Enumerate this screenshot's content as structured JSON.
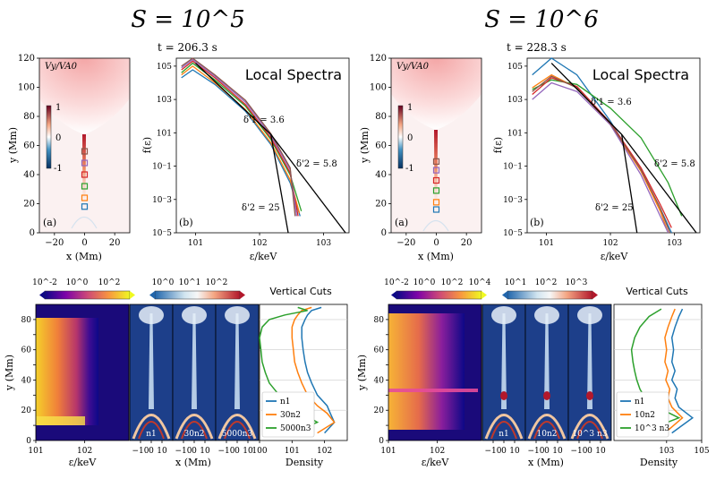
{
  "figure": {
    "left_group_title": "S = 10^5",
    "right_group_title": "S = 10^6"
  },
  "chart_data": [
    {
      "id": "A",
      "type": "heatmap",
      "panel_label": "(a)",
      "colorbar_label": "Vy/VA0",
      "xlabel": "x (Mm)",
      "ylabel": "y (Mm)",
      "xlim": [
        -30,
        30
      ],
      "ylim": [
        0,
        120
      ],
      "xticks": [
        -20,
        0,
        20
      ],
      "yticks": [
        0,
        20,
        40,
        60,
        80,
        100,
        120
      ],
      "colorbar_ticks": [
        -1,
        0,
        1
      ],
      "markers": [
        {
          "y": 18,
          "color": "#1f77b4"
        },
        {
          "y": 24,
          "color": "#ff7f0e"
        },
        {
          "y": 32,
          "color": "#2ca02c"
        },
        {
          "y": 40,
          "color": "#d62728"
        },
        {
          "y": 48,
          "color": "#9467bd"
        },
        {
          "y": 56,
          "color": "#8c564b"
        }
      ]
    },
    {
      "id": "B",
      "type": "line",
      "panel_label": "(b)",
      "time_label": "t = 206.3 s",
      "title": "Local Spectra",
      "xlabel": "ε/keV",
      "ylabel": "f(ε)",
      "xscale": "log",
      "yscale": "log",
      "xlim": [
        5,
        2500
      ],
      "ylim": [
        1e-05,
        300000.0
      ],
      "xticks": [
        10,
        100,
        1000
      ],
      "xticklabels": [
        "10^1",
        "10^2",
        "10^3"
      ],
      "yticks": [
        1e-05,
        0.001,
        0.1,
        10,
        1000,
        100000
      ],
      "yticklabels": [
        "10^-5",
        "10^-3",
        "10^-1",
        "10^1",
        "10^3",
        "10^5"
      ],
      "annotations": [
        "δ'1 = 3.6",
        "δ'2 = 5.8",
        "δ'2 = 25"
      ],
      "powerlaws": [
        {
          "x": [
            10,
            150
          ],
          "y": [
            150000.0,
            8
          ]
        },
        {
          "x": [
            150,
            2200
          ],
          "y": [
            8,
            1e-05
          ]
        },
        {
          "x": [
            150,
            280
          ],
          "y": [
            8,
            1e-05
          ]
        }
      ],
      "series": [
        {
          "color": "#1f77b4",
          "x": [
            6,
            9,
            20,
            60,
            150,
            300,
            430
          ],
          "y": [
            20000.0,
            60000.0,
            8000.0,
            200,
            2,
            0.01,
            0.0001
          ]
        },
        {
          "color": "#ff7f0e",
          "x": [
            6,
            9,
            20,
            60,
            150,
            300,
            420
          ],
          "y": [
            30000.0,
            100000.0,
            10000.0,
            250,
            2.5,
            0.015,
            0.00015
          ]
        },
        {
          "color": "#2ca02c",
          "x": [
            6,
            9,
            20,
            60,
            150,
            300,
            450
          ],
          "y": [
            40000.0,
            150000.0,
            15000.0,
            400,
            4,
            0.03,
            0.0002
          ]
        },
        {
          "color": "#d62728",
          "x": [
            6,
            9,
            20,
            60,
            150,
            300,
            400
          ],
          "y": [
            60000.0,
            200000.0,
            20000.0,
            500,
            5,
            0.04,
            0.0001
          ]
        },
        {
          "color": "#9467bd",
          "x": [
            6,
            9,
            20,
            60,
            150,
            300,
            380
          ],
          "y": [
            80000.0,
            250000.0,
            25000.0,
            700,
            7,
            0.06,
            0.0001
          ]
        },
        {
          "color": "#8c564b",
          "x": [
            6,
            9,
            20,
            60,
            150,
            300,
            360
          ],
          "y": [
            100000.0,
            300000.0,
            30000.0,
            900,
            9,
            0.08,
            0.0001
          ]
        }
      ]
    },
    {
      "id": "C",
      "type": "heatmap",
      "panel_label": "(a)",
      "colorbar_label": "Vy/VA0",
      "xlabel": "x (Mm)",
      "ylabel": "y (Mm)",
      "xlim": [
        -30,
        30
      ],
      "ylim": [
        0,
        120
      ],
      "xticks": [
        -20,
        0,
        20
      ],
      "yticks": [
        0,
        20,
        40,
        60,
        80,
        100,
        120
      ],
      "colorbar_ticks": [
        -1,
        0,
        1
      ],
      "markers": [
        {
          "y": 16,
          "color": "#1f77b4"
        },
        {
          "y": 21,
          "color": "#ff7f0e"
        },
        {
          "y": 29,
          "color": "#2ca02c"
        },
        {
          "y": 36,
          "color": "#d62728"
        },
        {
          "y": 43,
          "color": "#9467bd"
        },
        {
          "y": 49,
          "color": "#8c564b"
        }
      ]
    },
    {
      "id": "D",
      "type": "line",
      "panel_label": "(b)",
      "time_label": "t = 228.3 s",
      "title": "Local Spectra",
      "xlabel": "ε/keV",
      "ylabel": "f(ε)",
      "xscale": "log",
      "yscale": "log",
      "xlim": [
        5,
        2500
      ],
      "ylim": [
        1e-05,
        300000.0
      ],
      "xticks": [
        10,
        100,
        1000
      ],
      "xticklabels": [
        "10^1",
        "10^2",
        "10^3"
      ],
      "yticks": [
        1e-05,
        0.001,
        0.1,
        10,
        1000,
        100000
      ],
      "yticklabels": [
        "10^-5",
        "10^-3",
        "10^-1",
        "10^1",
        "10^3",
        "10^5"
      ],
      "annotations": [
        "δ'1 = 3.6",
        "δ'2 = 5.8",
        "δ'2 = 25"
      ],
      "powerlaws": [
        {
          "x": [
            12,
            150
          ],
          "y": [
            150000.0,
            8
          ]
        },
        {
          "x": [
            150,
            2200
          ],
          "y": [
            8,
            1e-05
          ]
        },
        {
          "x": [
            150,
            260
          ],
          "y": [
            8,
            1e-05
          ]
        }
      ],
      "series": [
        {
          "color": "#1f77b4",
          "x": [
            6,
            12,
            30,
            100,
            300,
            600,
            900
          ],
          "y": [
            30000.0,
            300000.0,
            30000.0,
            50,
            0.05,
            0.0003,
            1e-05
          ]
        },
        {
          "color": "#ff7f0e",
          "x": [
            6,
            12,
            30,
            100,
            300,
            600,
            800
          ],
          "y": [
            5000.0,
            30000.0,
            5000.0,
            30,
            0.05,
            0.0002,
            1e-05
          ]
        },
        {
          "color": "#2ca02c",
          "x": [
            6,
            12,
            30,
            100,
            300,
            800,
            1300
          ],
          "y": [
            4000.0,
            15000.0,
            8000.0,
            300,
            5,
            0.01,
            0.0001
          ]
        },
        {
          "color": "#d62728",
          "x": [
            6,
            12,
            30,
            100,
            300,
            600,
            900
          ],
          "y": [
            2000.0,
            20000.0,
            6000.0,
            40,
            0.08,
            0.0005,
            2e-05
          ]
        },
        {
          "color": "#9467bd",
          "x": [
            6,
            12,
            30,
            100,
            300,
            600,
            800
          ],
          "y": [
            1000.0,
            10000.0,
            3000.0,
            30,
            0.03,
            0.0001,
            1e-05
          ]
        },
        {
          "color": "#8c564b",
          "x": [
            6,
            12,
            30,
            100,
            300,
            600,
            850
          ],
          "y": [
            3000.0,
            25000.0,
            5000.0,
            35,
            0.06,
            0.0003,
            1e-05
          ]
        }
      ]
    },
    {
      "id": "E",
      "type": "heatmap",
      "xlabel": "ε/keV",
      "ylabel": "y (Mm)",
      "xscale": "log",
      "xlim": [
        10,
        800
      ],
      "ylim": [
        0,
        90
      ],
      "xticks": [
        10,
        100
      ],
      "xticklabels": [
        "10^1",
        "10^2"
      ],
      "yticks": [
        0,
        10,
        20,
        30,
        40,
        50,
        60,
        70,
        80
      ],
      "colorbar_ticks": [
        "10^-2",
        "10^0",
        "10^2"
      ]
    },
    {
      "id": "F",
      "type": "heatmap",
      "xlabel": "x (Mm)",
      "xticks": [
        -10,
        0,
        10
      ],
      "ylim": [
        0,
        90
      ],
      "panels": [
        "n1",
        "30n2",
        "5000n3"
      ],
      "colorbar_ticks": [
        "10^0",
        "10^1",
        "10^2"
      ]
    },
    {
      "id": "G",
      "type": "line",
      "title": "Vertical Cuts",
      "xlabel": "Density",
      "xscale": "log",
      "xlim": [
        1,
        500
      ],
      "ylim": [
        0,
        90
      ],
      "xticks": [
        1,
        10,
        100
      ],
      "xticklabels": [
        "10^0",
        "10^1",
        "10^2"
      ],
      "series": [
        {
          "name": "n1",
          "color": "#1f77b4",
          "x": [
            100,
            200,
            150,
            120,
            60,
            40,
            30,
            25,
            22,
            20,
            20,
            25,
            30,
            40,
            80
          ],
          "y": [
            5,
            12,
            18,
            23,
            30,
            38,
            45,
            52,
            60,
            68,
            75,
            80,
            83,
            86,
            88
          ]
        },
        {
          "name": "30n2",
          "color": "#ff7f0e",
          "x": [
            60,
            200,
            120,
            60,
            30,
            20,
            15,
            12,
            11,
            10,
            10,
            12,
            15,
            20,
            40
          ],
          "y": [
            5,
            12,
            18,
            23,
            30,
            38,
            45,
            52,
            60,
            68,
            75,
            80,
            83,
            86,
            88
          ]
        },
        {
          "name": "5000n3",
          "color": "#2ca02c",
          "x": [
            10,
            60,
            20,
            8,
            4,
            2,
            1.5,
            1.2,
            1.1,
            1,
            1.2,
            2,
            6,
            30,
            15
          ],
          "y": [
            5,
            12,
            18,
            23,
            30,
            38,
            45,
            52,
            60,
            68,
            75,
            80,
            83,
            86,
            88
          ]
        }
      ]
    },
    {
      "id": "H",
      "type": "heatmap",
      "xlabel": "ε/keV",
      "ylabel": "y (Mm)",
      "xscale": "log",
      "xlim": [
        10,
        800
      ],
      "ylim": [
        0,
        90
      ],
      "xticks": [
        10,
        100
      ],
      "xticklabels": [
        "10^1",
        "10^2"
      ],
      "yticks": [
        0,
        10,
        20,
        30,
        40,
        50,
        60,
        70,
        80
      ],
      "colorbar_ticks": [
        "10^-2",
        "10^0",
        "10^2",
        "10^4"
      ]
    },
    {
      "id": "I",
      "type": "heatmap",
      "xlabel": "x (Mm)",
      "xticks": [
        -10,
        0,
        10
      ],
      "ylim": [
        0,
        90
      ],
      "panels": [
        "n1",
        "10n2",
        "10^3 n3"
      ],
      "colorbar_ticks": [
        "10^1",
        "10^2",
        "10^3"
      ]
    },
    {
      "id": "J",
      "type": "line",
      "title": "Vertical Cuts",
      "xlabel": "Density",
      "xscale": "log",
      "xlim": [
        1,
        100000
      ],
      "ylim": [
        0,
        90
      ],
      "xticks": [
        1000,
        100000
      ],
      "xticklabels": [
        "10^3",
        "10^5"
      ],
      "series": [
        {
          "name": "n1",
          "color": "#1f77b4",
          "x": [
            2000,
            30000,
            5000,
            3000,
            4000,
            2000,
            3000,
            2000,
            2500,
            2000,
            3000,
            5000,
            8000
          ],
          "y": [
            5,
            15,
            22,
            28,
            34,
            40,
            46,
            52,
            60,
            68,
            75,
            82,
            87
          ]
        },
        {
          "name": "10n2",
          "color": "#ff7f0e",
          "x": [
            800,
            8000,
            2000,
            1200,
            1500,
            900,
            1200,
            800,
            1000,
            800,
            1200,
            2000,
            3000
          ],
          "y": [
            5,
            15,
            22,
            28,
            34,
            40,
            46,
            52,
            60,
            68,
            75,
            82,
            87
          ]
        },
        {
          "name": "10^3 n3",
          "color": "#2ca02c",
          "x": [
            30,
            5000,
            300,
            60,
            30,
            20,
            15,
            12,
            10,
            15,
            30,
            100,
            500
          ],
          "y": [
            5,
            15,
            22,
            28,
            34,
            40,
            46,
            52,
            60,
            68,
            75,
            82,
            87
          ]
        }
      ]
    }
  ]
}
